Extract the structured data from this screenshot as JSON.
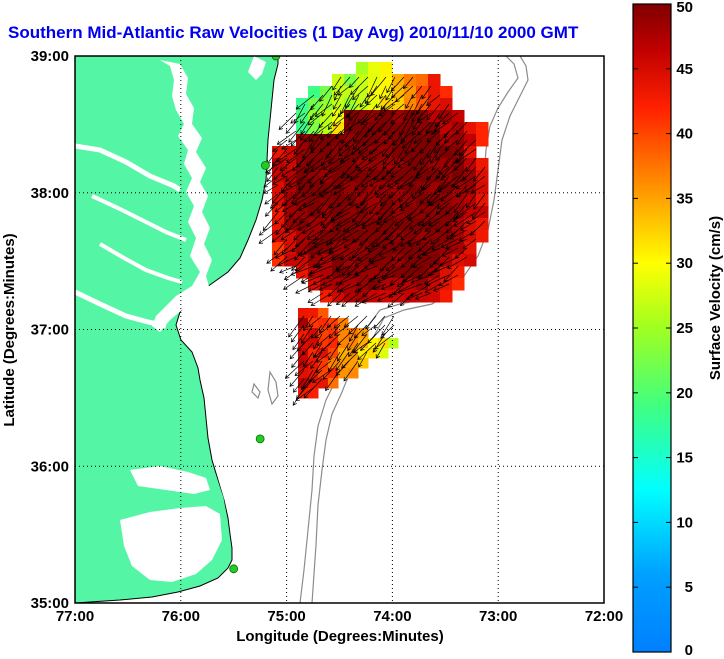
{
  "title": "Southern Mid-Atlantic Raw Velocities (1 Day Avg) 2010/11/10 2000 GMT",
  "colors": {
    "title": "#0000ee",
    "land": "#55f5a6",
    "coast": "#000000",
    "bathymetry": "#8c8c8c",
    "station": "#22cc22"
  },
  "chart_data": {
    "type": "heatmap",
    "xlabel": "Longitude (Degrees:Minutes)",
    "ylabel": "Latitude (Degrees:Minutes)",
    "xlim": [
      -77,
      -72
    ],
    "ylim": [
      35,
      39
    ],
    "xticks": [
      {
        "value": -77,
        "label": "77:00"
      },
      {
        "value": -76,
        "label": "76:00"
      },
      {
        "value": -75,
        "label": "75:00"
      },
      {
        "value": -74,
        "label": "74:00"
      },
      {
        "value": -73,
        "label": "73:00"
      },
      {
        "value": -72,
        "label": "72:00"
      }
    ],
    "yticks": [
      {
        "value": 35,
        "label": "35:00"
      },
      {
        "value": 36,
        "label": "36:00"
      },
      {
        "value": 37,
        "label": "37:00"
      },
      {
        "value": 38,
        "label": "38:00"
      },
      {
        "value": 39,
        "label": "39:00"
      }
    ],
    "grid": true,
    "colorbar": {
      "label": "Surface Velocity (cm/s)",
      "min": 0,
      "max": 50,
      "ticks": [
        0,
        5,
        10,
        15,
        20,
        25,
        30,
        35,
        40,
        45,
        50
      ]
    },
    "stations": [
      {
        "lon": -75.1,
        "lat": 39.0
      },
      {
        "lon": -75.2,
        "lat": 38.2
      },
      {
        "lon": -75.25,
        "lat": 36.2
      },
      {
        "lon": -75.5,
        "lat": 35.25
      }
    ],
    "velocity_regions": [
      {
        "name": "north",
        "lon": [
          -75.0,
          -73.0
        ],
        "lat": [
          37.3,
          38.95
        ],
        "note": "speeds ~10-20 cm/s in NW corner rising to 45-50 cm/s across the core"
      },
      {
        "name": "south",
        "lon": [
          -74.85,
          -73.9
        ],
        "lat": [
          36.6,
          37.15
        ],
        "note": "speeds ~25-50 cm/s"
      }
    ]
  }
}
